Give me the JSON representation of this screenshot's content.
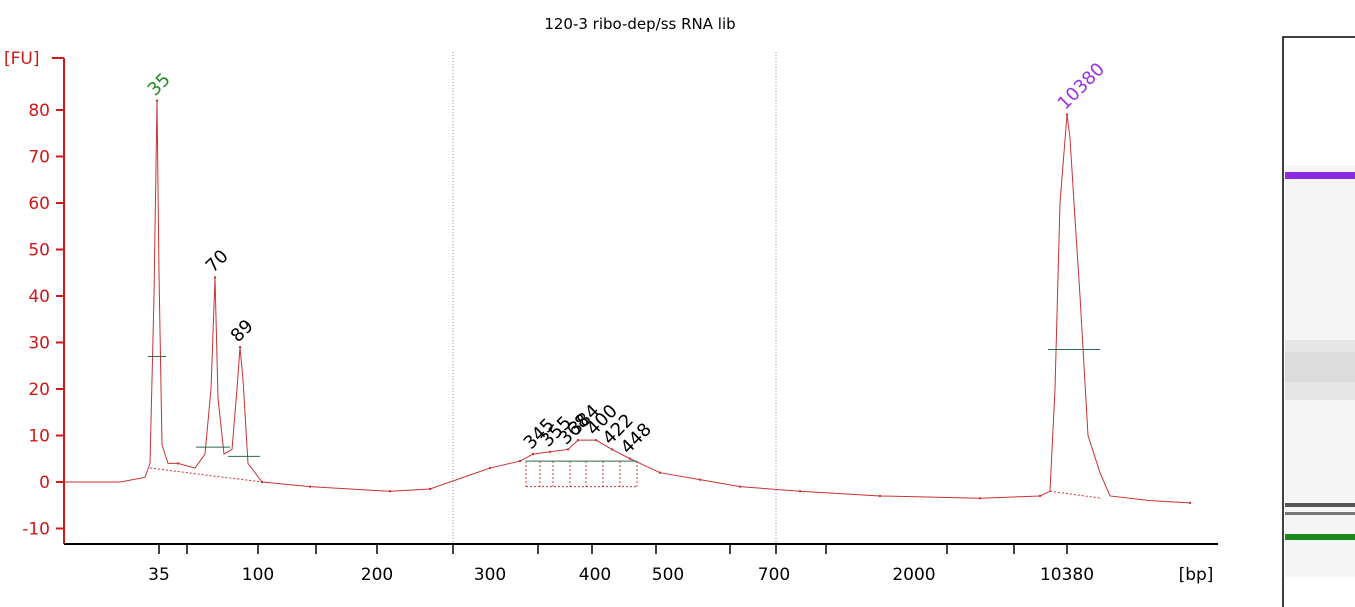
{
  "chart_data": {
    "type": "line",
    "title": "120-3 ribo-dep/ss RNA lib",
    "ylabel": "[FU]",
    "xlabel": "[bp]",
    "ylim": [
      -12,
      85
    ],
    "y_ticks": [
      80,
      70,
      60,
      50,
      40,
      30,
      20,
      10,
      0,
      -10
    ],
    "x_tick_labels": [
      "35",
      "100",
      "200",
      "300",
      "400",
      "500",
      "700",
      "2000",
      "10380"
    ],
    "x": [
      "35",
      "",
      "70",
      "89",
      "100",
      "",
      "200",
      "",
      "300",
      "",
      "345",
      "355",
      "368",
      "384",
      "400",
      "422",
      "448",
      "",
      "500",
      "",
      "700",
      "",
      "2000",
      "",
      "10380",
      ""
    ],
    "series": [
      {
        "values": [
          82,
          4,
          44,
          29,
          0,
          -1,
          -2,
          -1.5,
          3,
          4.5,
          6,
          6.5,
          7,
          9,
          9,
          7,
          5,
          2,
          0.5,
          -1,
          -2,
          -3,
          -3.5,
          -3,
          79,
          -4.5
        ]
      }
    ],
    "peaks": [
      {
        "label": "35",
        "color": "#228b22"
      },
      {
        "label": "70",
        "color": "#000000"
      },
      {
        "label": "89",
        "color": "#000000"
      },
      {
        "label": "345",
        "color": "#000000"
      },
      {
        "label": "355",
        "color": "#000000"
      },
      {
        "label": "368",
        "color": "#000000"
      },
      {
        "label": "384",
        "color": "#000000"
      },
      {
        "label": "400",
        "color": "#000000"
      },
      {
        "label": "422",
        "color": "#000000"
      },
      {
        "label": "448",
        "color": "#000000"
      },
      {
        "label": "10380",
        "color": "#9b30e6"
      }
    ],
    "grid": false,
    "line_color": "#c83232",
    "axis_color": "#d01818"
  },
  "gel": {
    "upper_marker_color": "#8b2be2",
    "lower_marker_color": "#1a8a1a"
  }
}
